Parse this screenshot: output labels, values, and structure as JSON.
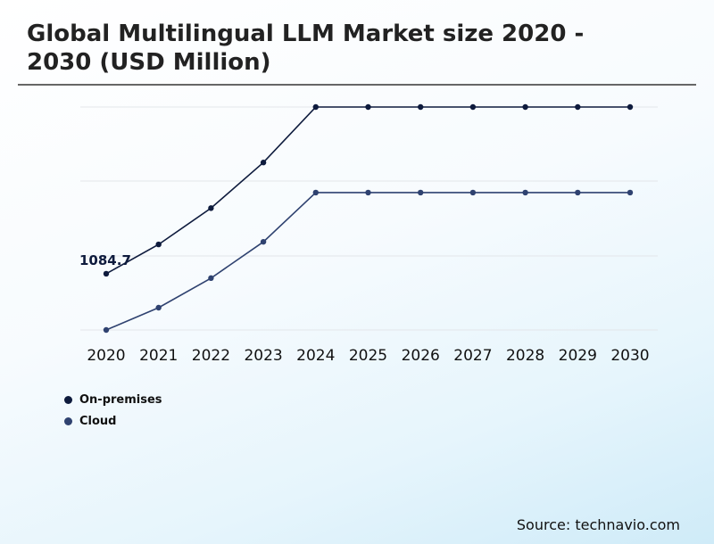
{
  "title": "Global Multilingual LLM Market size 2020 - 2030 (USD Million)",
  "source": "Source: technavio.com",
  "colors": {
    "on_premises": "#0e1b3d",
    "cloud": "#2f4270",
    "grid": "#e3e6ea"
  },
  "chart_data": {
    "type": "line",
    "title": "Global Multilingual LLM Market size 2020 - 2030 (USD Million)",
    "x": [
      "2020",
      "2021",
      "2022",
      "2023",
      "2024",
      "2025",
      "2026",
      "2027",
      "2028",
      "2029",
      "2030"
    ],
    "ylim": [
      0,
      4300
    ],
    "grid": true,
    "legend_position": "bottom-left",
    "series": [
      {
        "name": "On-premises",
        "color": "#0e1b3d",
        "values": [
          1084.7,
          1650,
          2350,
          3230,
          4300,
          4300,
          4300,
          4300,
          4300,
          4300,
          4300
        ]
      },
      {
        "name": "Cloud",
        "color": "#2f4270",
        "values": [
          0,
          430,
          1000,
          1700,
          2650,
          2650,
          2650,
          2650,
          2650,
          2650,
          2650
        ]
      }
    ],
    "annotations": [
      {
        "series": 0,
        "index": 0,
        "text": "1084.7"
      }
    ]
  },
  "legend": [
    {
      "label": "On-premises",
      "color": "#0e1b3d"
    },
    {
      "label": "Cloud",
      "color": "#2f4270"
    }
  ]
}
